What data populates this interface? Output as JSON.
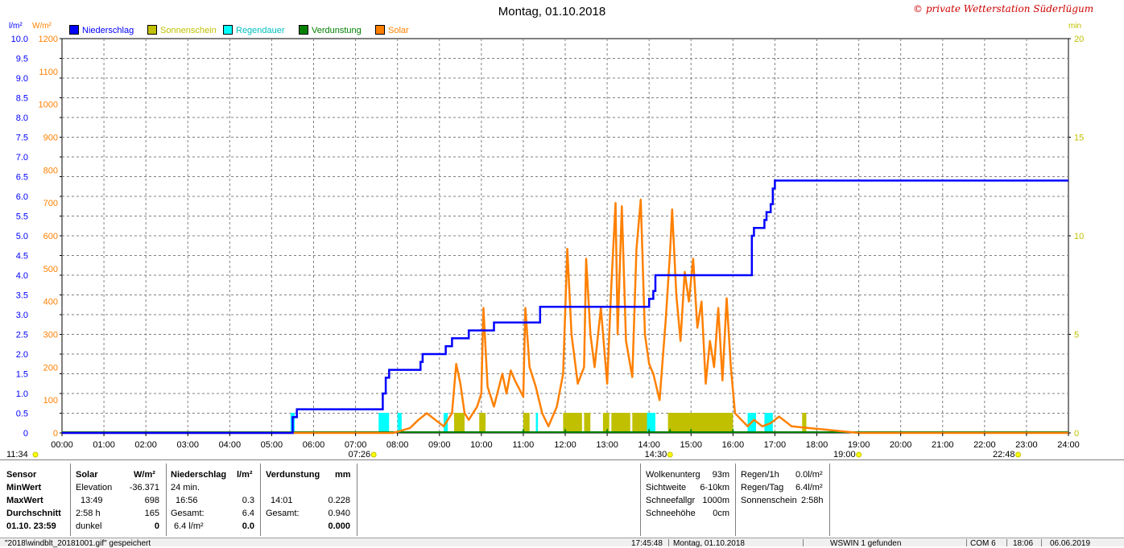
{
  "title": "Montag, 01.10.2018",
  "copyright": "© private Wetterstation Süderlügum",
  "legend": [
    {
      "label": "Niederschlag",
      "color": "#0000ff"
    },
    {
      "label": "Sonnenschein",
      "color": "#c0c000"
    },
    {
      "label": "Regendauer",
      "color": "#00ffff"
    },
    {
      "label": "Verdunstung",
      "color": "#008000"
    },
    {
      "label": "Solar",
      "color": "#ff8000"
    }
  ],
  "axes": {
    "left1_unit": "l/m²",
    "left2_unit": "W/m²",
    "right_unit": "min",
    "left1_ticks": [
      "10.0",
      "9.5",
      "9.0",
      "8.5",
      "8.0",
      "7.5",
      "7.0",
      "6.5",
      "6.0",
      "5.5",
      "5.0",
      "4.5",
      "4.0",
      "3.5",
      "3.0",
      "2.5",
      "2.0",
      "1.5",
      "1.0",
      "0.5",
      "0"
    ],
    "left2_ticks": [
      "1200",
      "1100",
      "1000",
      "900",
      "800",
      "700",
      "600",
      "500",
      "400",
      "300",
      "200",
      "100",
      "0"
    ],
    "right_ticks": [
      "20",
      "15",
      "10",
      "5",
      "0"
    ],
    "x_ticks": [
      "00:00",
      "01:00",
      "02:00",
      "03:00",
      "04:00",
      "05:00",
      "06:00",
      "07:00",
      "08:00",
      "09:00",
      "10:00",
      "11:00",
      "12:00",
      "13:00",
      "14:00",
      "15:00",
      "16:00",
      "17:00",
      "18:00",
      "19:00",
      "20:00",
      "21:00",
      "22:00",
      "23:00",
      "24:00"
    ],
    "x_markers": [
      {
        "label": "11:34",
        "t": 0,
        "side": "left"
      },
      {
        "label": "07:26",
        "t": 7.433
      },
      {
        "label": "14:30",
        "t": 14.5
      },
      {
        "label": "19:00",
        "t": 19.0
      },
      {
        "label": "22:48",
        "t": 22.8
      }
    ]
  },
  "chart_data": {
    "type": "line",
    "x_unit": "hour of day",
    "xlim": [
      0,
      24
    ],
    "series": [
      {
        "name": "Niederschlag",
        "unit": "l/m²",
        "ylim": [
          0,
          10
        ],
        "points": [
          [
            0,
            0
          ],
          [
            5.45,
            0
          ],
          [
            5.5,
            0.4
          ],
          [
            5.6,
            0.6
          ],
          [
            7.6,
            0.6
          ],
          [
            7.65,
            1.0
          ],
          [
            7.72,
            1.4
          ],
          [
            7.8,
            1.6
          ],
          [
            7.9,
            1.6
          ],
          [
            8.0,
            1.6
          ],
          [
            8.55,
            1.8
          ],
          [
            8.6,
            2.0
          ],
          [
            9.1,
            2.0
          ],
          [
            9.15,
            2.2
          ],
          [
            9.3,
            2.4
          ],
          [
            9.6,
            2.4
          ],
          [
            9.7,
            2.6
          ],
          [
            10.2,
            2.6
          ],
          [
            10.3,
            2.8
          ],
          [
            11.3,
            2.8
          ],
          [
            11.4,
            3.2
          ],
          [
            13.95,
            3.2
          ],
          [
            14.0,
            3.4
          ],
          [
            14.1,
            3.6
          ],
          [
            14.15,
            4.0
          ],
          [
            16.3,
            4.0
          ],
          [
            16.45,
            5.0
          ],
          [
            16.5,
            5.2
          ],
          [
            16.7,
            5.2
          ],
          [
            16.75,
            5.4
          ],
          [
            16.8,
            5.6
          ],
          [
            16.9,
            5.8
          ],
          [
            16.95,
            6.2
          ],
          [
            17.0,
            6.4
          ],
          [
            24,
            6.4
          ]
        ]
      },
      {
        "name": "Solar",
        "unit": "W/m²",
        "ylim": [
          0,
          1200
        ],
        "points": [
          [
            0,
            0
          ],
          [
            7.9,
            0
          ],
          [
            8.3,
            15
          ],
          [
            8.5,
            40
          ],
          [
            8.7,
            60
          ],
          [
            8.9,
            40
          ],
          [
            9.1,
            20
          ],
          [
            9.3,
            60
          ],
          [
            9.4,
            210
          ],
          [
            9.5,
            150
          ],
          [
            9.6,
            60
          ],
          [
            9.7,
            40
          ],
          [
            9.9,
            80
          ],
          [
            10.0,
            120
          ],
          [
            10.05,
            380
          ],
          [
            10.15,
            140
          ],
          [
            10.3,
            80
          ],
          [
            10.5,
            180
          ],
          [
            10.6,
            120
          ],
          [
            10.7,
            190
          ],
          [
            10.8,
            160
          ],
          [
            11.0,
            110
          ],
          [
            11.05,
            380
          ],
          [
            11.15,
            200
          ],
          [
            11.3,
            140
          ],
          [
            11.45,
            60
          ],
          [
            11.6,
            20
          ],
          [
            11.8,
            80
          ],
          [
            11.95,
            180
          ],
          [
            12.05,
            560
          ],
          [
            12.15,
            300
          ],
          [
            12.3,
            150
          ],
          [
            12.45,
            200
          ],
          [
            12.5,
            530
          ],
          [
            12.6,
            300
          ],
          [
            12.7,
            200
          ],
          [
            12.85,
            380
          ],
          [
            13.0,
            150
          ],
          [
            13.1,
            450
          ],
          [
            13.2,
            700
          ],
          [
            13.25,
            300
          ],
          [
            13.35,
            690
          ],
          [
            13.45,
            280
          ],
          [
            13.6,
            170
          ],
          [
            13.7,
            560
          ],
          [
            13.8,
            710
          ],
          [
            13.9,
            300
          ],
          [
            14.0,
            210
          ],
          [
            14.1,
            180
          ],
          [
            14.25,
            100
          ],
          [
            14.4,
            350
          ],
          [
            14.5,
            550
          ],
          [
            14.55,
            680
          ],
          [
            14.65,
            420
          ],
          [
            14.75,
            280
          ],
          [
            14.85,
            490
          ],
          [
            14.95,
            400
          ],
          [
            15.05,
            530
          ],
          [
            15.15,
            320
          ],
          [
            15.25,
            400
          ],
          [
            15.35,
            150
          ],
          [
            15.45,
            280
          ],
          [
            15.55,
            200
          ],
          [
            15.65,
            380
          ],
          [
            15.75,
            160
          ],
          [
            15.85,
            410
          ],
          [
            15.95,
            200
          ],
          [
            16.05,
            60
          ],
          [
            16.2,
            40
          ],
          [
            16.35,
            20
          ],
          [
            16.5,
            40
          ],
          [
            16.7,
            20
          ],
          [
            16.9,
            30
          ],
          [
            17.1,
            50
          ],
          [
            17.4,
            20
          ],
          [
            17.8,
            15
          ],
          [
            18.2,
            10
          ],
          [
            18.6,
            5
          ],
          [
            19.0,
            0
          ],
          [
            24,
            0
          ]
        ]
      }
    ],
    "bars": [
      {
        "name": "Sonnenschein",
        "unit": "min",
        "ranges": [
          [
            9.35,
            9.6
          ],
          [
            9.95,
            10.1
          ],
          [
            11.0,
            11.15
          ],
          [
            11.95,
            12.4
          ],
          [
            12.45,
            12.6
          ],
          [
            12.9,
            13.05
          ],
          [
            13.1,
            13.55
          ],
          [
            13.6,
            14.0
          ],
          [
            14.45,
            16.0
          ],
          [
            17.65,
            17.75
          ]
        ]
      },
      {
        "name": "Regendauer",
        "unit": "min",
        "ranges": [
          [
            5.45,
            5.55
          ],
          [
            7.55,
            7.8
          ],
          [
            8.0,
            8.1
          ],
          [
            9.1,
            9.2
          ],
          [
            11.3,
            11.35
          ],
          [
            13.95,
            14.15
          ],
          [
            16.35,
            16.55
          ],
          [
            16.75,
            16.95
          ]
        ]
      },
      {
        "name": "Verdunstung",
        "unit": "min",
        "points": [
          11.0,
          12.0,
          13.0,
          14.0,
          14.5,
          15.0,
          16.0
        ]
      }
    ]
  },
  "stats": {
    "sensor": {
      "header": "Sensor",
      "rows": [
        "MinWert",
        "MaxWert",
        "Durchschnitt",
        "01.10.  23:59"
      ]
    },
    "solar": {
      "header": "Solar",
      "unit": "W/m²",
      "rows": [
        [
          "Elevation",
          "-36.371"
        ],
        [
          "13:49",
          "698"
        ],
        [
          "2:58 h",
          "165"
        ],
        [
          "dunkel",
          "0"
        ]
      ]
    },
    "niederschlag": {
      "header": "Niederschlag",
      "unit": "l/m²",
      "rows": [
        [
          "24 min.",
          ""
        ],
        [
          "16:56",
          "0.3"
        ],
        [
          "Gesamt:",
          "6.4"
        ],
        [
          "6.4 l/m²",
          "0.0"
        ]
      ]
    },
    "verdunstung": {
      "header": "Verdunstung",
      "unit": "mm",
      "rows": [
        [
          "",
          ""
        ],
        [
          "14:01",
          "0.228"
        ],
        [
          "Gesamt:",
          "0.940"
        ],
        [
          "",
          "0.000"
        ]
      ]
    },
    "wolken": [
      [
        "Wolkenunterg",
        "93m"
      ],
      [
        "Sichtweite",
        "6-10km"
      ],
      [
        "Schneefallgr",
        "1000m"
      ],
      [
        "Schneehöhe",
        "0cm"
      ]
    ],
    "regen": [
      [
        "Regen/1h",
        "0.0l/m²"
      ],
      [
        "Regen/Tag",
        "6.4l/m²"
      ],
      [
        "Sonnenschein",
        "2:58h"
      ]
    ]
  },
  "statusbar": [
    "\"2018\\windblt_20181001.gif\" gespeichert",
    "17:45:48",
    "Montag, 01.10.2018",
    "WSWIN 1 gefunden",
    "COM 6",
    "18:06",
    "06.06.2019"
  ]
}
